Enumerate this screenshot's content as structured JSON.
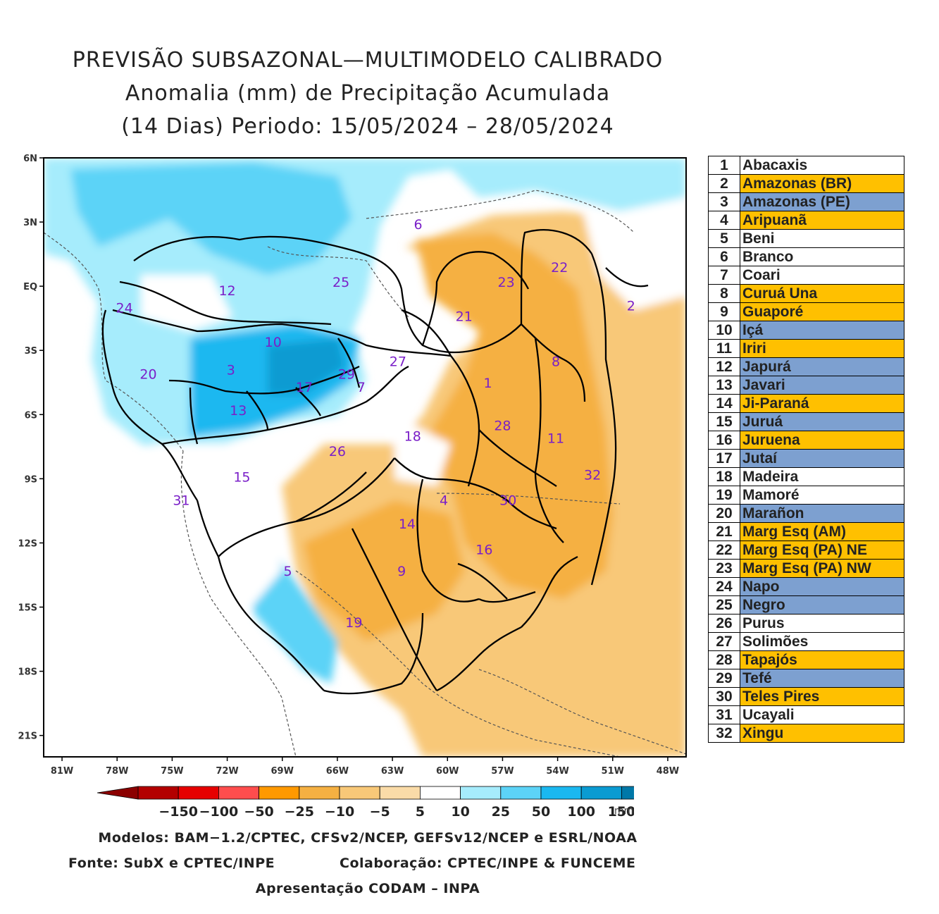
{
  "title": {
    "line1": "PREVISÃO SUBSAZONAL—MULTIMODELO CALIBRADO",
    "line2": "Anomalia (mm) de Precipitação Acumulada",
    "line3": "(14 Dias) Periodo: 15/05/2024 – 28/05/2024"
  },
  "axes": {
    "lat_labels": [
      "6N",
      "3N",
      "EQ",
      "3S",
      "6S",
      "9S",
      "12S",
      "15S",
      "18S",
      "21S"
    ],
    "lon_labels": [
      "81W",
      "78W",
      "75W",
      "72W",
      "69W",
      "66W",
      "63W",
      "60W",
      "57W",
      "54W",
      "51W",
      "48W"
    ],
    "lat_range": [
      6,
      -22
    ],
    "lon_range": [
      -82,
      -47
    ]
  },
  "basin_labels": [
    {
      "n": "1",
      "lon": -57.8,
      "lat": -4.5
    },
    {
      "n": "2",
      "lon": -50.0,
      "lat": -0.9
    },
    {
      "n": "3",
      "lon": -71.8,
      "lat": -3.9
    },
    {
      "n": "4",
      "lon": -60.2,
      "lat": -10.0
    },
    {
      "n": "5",
      "lon": -68.7,
      "lat": -13.3
    },
    {
      "n": "6",
      "lon": -61.6,
      "lat": 2.9
    },
    {
      "n": "7",
      "lon": -64.7,
      "lat": -4.7
    },
    {
      "n": "8",
      "lon": -54.1,
      "lat": -3.5
    },
    {
      "n": "9",
      "lon": -62.5,
      "lat": -13.3
    },
    {
      "n": "10",
      "lon": -69.5,
      "lat": -2.6
    },
    {
      "n": "11",
      "lon": -54.1,
      "lat": -7.1
    },
    {
      "n": "12",
      "lon": -72.0,
      "lat": -0.2
    },
    {
      "n": "13",
      "lon": -71.4,
      "lat": -5.8
    },
    {
      "n": "14",
      "lon": -62.2,
      "lat": -11.1
    },
    {
      "n": "15",
      "lon": -71.2,
      "lat": -8.9
    },
    {
      "n": "16",
      "lon": -58.0,
      "lat": -12.3
    },
    {
      "n": "17",
      "lon": -67.8,
      "lat": -4.7
    },
    {
      "n": "18",
      "lon": -61.9,
      "lat": -7.0
    },
    {
      "n": "19",
      "lon": -65.1,
      "lat": -15.7
    },
    {
      "n": "20",
      "lon": -76.3,
      "lat": -4.1
    },
    {
      "n": "21",
      "lon": -59.1,
      "lat": -1.4
    },
    {
      "n": "22",
      "lon": -53.9,
      "lat": 0.9
    },
    {
      "n": "23",
      "lon": -56.8,
      "lat": 0.2
    },
    {
      "n": "24",
      "lon": -77.6,
      "lat": -1.0
    },
    {
      "n": "25",
      "lon": -65.8,
      "lat": 0.2
    },
    {
      "n": "26",
      "lon": -66.0,
      "lat": -7.7
    },
    {
      "n": "27",
      "lon": -62.7,
      "lat": -3.5
    },
    {
      "n": "28",
      "lon": -57.0,
      "lat": -6.5
    },
    {
      "n": "29",
      "lon": -65.5,
      "lat": -4.1
    },
    {
      "n": "30",
      "lon": -56.7,
      "lat": -10.0
    },
    {
      "n": "31",
      "lon": -74.5,
      "lat": -10.0
    },
    {
      "n": "32",
      "lon": -52.1,
      "lat": -8.8
    }
  ],
  "legend": [
    {
      "n": "1",
      "name": "Abacaxis",
      "color": "#ffffff"
    },
    {
      "n": "2",
      "name": "Amazonas (BR)",
      "color": "#ffc000"
    },
    {
      "n": "3",
      "name": "Amazonas (PE)",
      "color": "#7da0d0"
    },
    {
      "n": "4",
      "name": "Aripuanã",
      "color": "#ffc000"
    },
    {
      "n": "5",
      "name": "Beni",
      "color": "#ffffff"
    },
    {
      "n": "6",
      "name": "Branco",
      "color": "#ffffff"
    },
    {
      "n": "7",
      "name": "Coari",
      "color": "#ffffff"
    },
    {
      "n": "8",
      "name": "Curuá Una",
      "color": "#ffc000"
    },
    {
      "n": "9",
      "name": "Guaporé",
      "color": "#ffc000"
    },
    {
      "n": "10",
      "name": "Içá",
      "color": "#7da0d0"
    },
    {
      "n": "11",
      "name": "Iriri",
      "color": "#ffc000"
    },
    {
      "n": "12",
      "name": "Japurá",
      "color": "#7da0d0"
    },
    {
      "n": "13",
      "name": "Javari",
      "color": "#7da0d0"
    },
    {
      "n": "14",
      "name": "Ji-Paraná",
      "color": "#ffc000"
    },
    {
      "n": "15",
      "name": "Juruá",
      "color": "#7da0d0"
    },
    {
      "n": "16",
      "name": "Juruena",
      "color": "#ffc000"
    },
    {
      "n": "17",
      "name": "Jutaí",
      "color": "#7da0d0"
    },
    {
      "n": "18",
      "name": "Madeira",
      "color": "#ffffff"
    },
    {
      "n": "19",
      "name": "Mamoré",
      "color": "#ffffff"
    },
    {
      "n": "20",
      "name": "Marañon",
      "color": "#7da0d0"
    },
    {
      "n": "21",
      "name": "Marg Esq (AM)",
      "color": "#ffc000"
    },
    {
      "n": "22",
      "name": "Marg Esq (PA) NE",
      "color": "#ffc000"
    },
    {
      "n": "23",
      "name": "Marg Esq (PA) NW",
      "color": "#ffc000"
    },
    {
      "n": "24",
      "name": "Napo",
      "color": "#7da0d0"
    },
    {
      "n": "25",
      "name": "Negro",
      "color": "#7da0d0"
    },
    {
      "n": "26",
      "name": "Purus",
      "color": "#ffffff"
    },
    {
      "n": "27",
      "name": "Solimões",
      "color": "#ffffff"
    },
    {
      "n": "28",
      "name": "Tapajós",
      "color": "#ffc000"
    },
    {
      "n": "29",
      "name": "Tefé",
      "color": "#7da0d0"
    },
    {
      "n": "30",
      "name": "Teles Pires",
      "color": "#ffc000"
    },
    {
      "n": "31",
      "name": "Ucayali",
      "color": "#ffffff"
    },
    {
      "n": "32",
      "name": "Xingu",
      "color": "#ffc000"
    }
  ],
  "colorbar": {
    "colors": [
      "#b30000",
      "#e60000",
      "#ff4d4d",
      "#ff9900",
      "#f5b042",
      "#f8c878",
      "#fadba8",
      "#ffffff",
      "#a6ecfc",
      "#5cd3f7",
      "#1ab8f0",
      "#0a9bd2",
      "#0078a8",
      "#005a80"
    ],
    "ticks": [
      "−150",
      "−100",
      "−50",
      "−25",
      "−10",
      "−5",
      "5",
      "10",
      "25",
      "50",
      "100",
      "150"
    ],
    "unit": "mm"
  },
  "footer": {
    "models": "Modelos: BAM−1.2/CPTEC, CFSv2/NCEP, GEFSv12/NCEP e ESRL/NOAA",
    "source": "Fonte: SubX e CPTEC/INPE",
    "collab": "Colaboração: CPTEC/INPE & FUNCEME",
    "presentation": "Apresentação CODAM – INPA"
  }
}
